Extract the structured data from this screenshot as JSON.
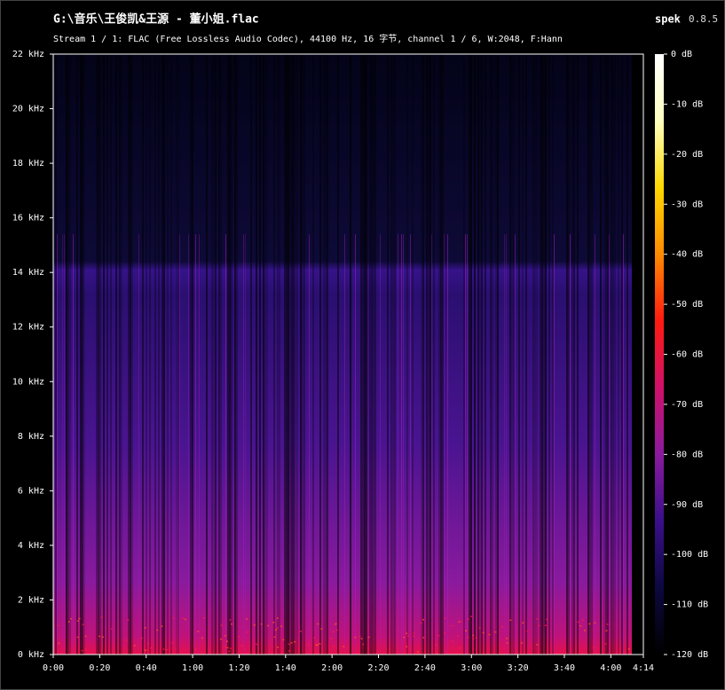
{
  "chart_data": {
    "type": "spectrogram",
    "title": "G:\\音乐\\王俊凯&王源 - 董小姐.flac",
    "subtitle": "Stream 1 / 1: FLAC (Free Lossless Audio Codec), 44100 Hz, 16 字节, channel 1 / 6, W:2048, F:Hann",
    "app_name": "spek",
    "app_version": "0.8.5",
    "xlim": [
      0,
      254
    ],
    "xticks": [
      {
        "value": 0,
        "label": "0:00"
      },
      {
        "value": 20,
        "label": "0:20"
      },
      {
        "value": 40,
        "label": "0:40"
      },
      {
        "value": 60,
        "label": "1:00"
      },
      {
        "value": 80,
        "label": "1:20"
      },
      {
        "value": 100,
        "label": "1:40"
      },
      {
        "value": 120,
        "label": "2:00"
      },
      {
        "value": 140,
        "label": "2:20"
      },
      {
        "value": 160,
        "label": "2:40"
      },
      {
        "value": 180,
        "label": "3:00"
      },
      {
        "value": 200,
        "label": "3:20"
      },
      {
        "value": 220,
        "label": "3:40"
      },
      {
        "value": 240,
        "label": "4:00"
      },
      {
        "value": 254,
        "label": "4:14"
      }
    ],
    "ylim": [
      0,
      22
    ],
    "yticks": [
      {
        "value": 0,
        "label": "0 kHz"
      },
      {
        "value": 2,
        "label": "2 kHz"
      },
      {
        "value": 4,
        "label": "4 kHz"
      },
      {
        "value": 6,
        "label": "6 kHz"
      },
      {
        "value": 8,
        "label": "8 kHz"
      },
      {
        "value": 10,
        "label": "10 kHz"
      },
      {
        "value": 12,
        "label": "12 kHz"
      },
      {
        "value": 14,
        "label": "14 kHz"
      },
      {
        "value": 16,
        "label": "16 kHz"
      },
      {
        "value": 18,
        "label": "18 kHz"
      },
      {
        "value": 20,
        "label": "20 kHz"
      },
      {
        "value": 22,
        "label": "22 kHz"
      }
    ],
    "colorbar": {
      "lim": [
        -120,
        0
      ],
      "ticks": [
        {
          "value": 0,
          "label": "0 dB"
        },
        {
          "value": -10,
          "label": "-10 dB"
        },
        {
          "value": -20,
          "label": "-20 dB"
        },
        {
          "value": -30,
          "label": "-30 dB"
        },
        {
          "value": -40,
          "label": "-40 dB"
        },
        {
          "value": -50,
          "label": "-50 dB"
        },
        {
          "value": -60,
          "label": "-60 dB"
        },
        {
          "value": -70,
          "label": "-70 dB"
        },
        {
          "value": -80,
          "label": "-80 dB"
        },
        {
          "value": -90,
          "label": "-90 dB"
        },
        {
          "value": -100,
          "label": "-100 dB"
        },
        {
          "value": -110,
          "label": "-110 dB"
        },
        {
          "value": -120,
          "label": "-120 dB"
        }
      ],
      "colormap": [
        "#000000",
        "#0c0840",
        "#3a0f8a",
        "#8a1a9e",
        "#d0106a",
        "#ff1a10",
        "#ff8a00",
        "#ffd800",
        "#ffffc0",
        "#ffffff"
      ]
    }
  }
}
